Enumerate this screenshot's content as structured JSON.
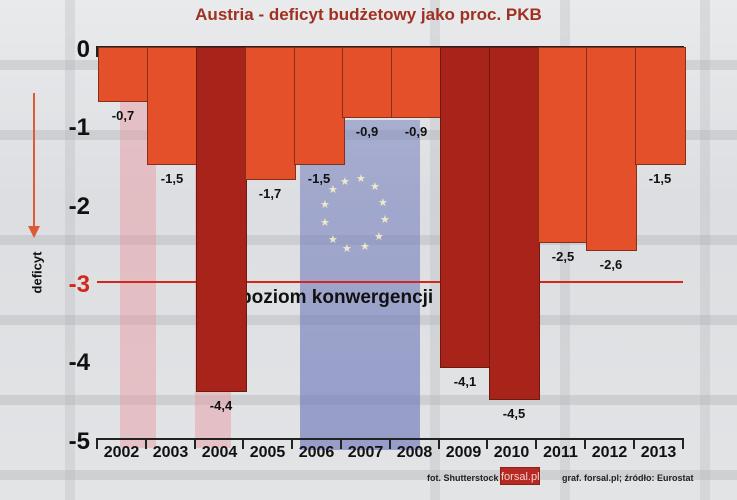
{
  "title": "Austria - deficyt budżetowy jako proc. PKB",
  "y_axis": {
    "label": "deficyt",
    "ticks": [
      {
        "value": 0,
        "label": "0"
      },
      {
        "value": -1,
        "label": "-1"
      },
      {
        "value": -2,
        "label": "-2"
      },
      {
        "value": -3,
        "label": "-3"
      },
      {
        "value": -4,
        "label": "-4"
      },
      {
        "value": -5,
        "label": "-5"
      }
    ]
  },
  "convergence": {
    "value": -3,
    "label": "poziom konwergencji"
  },
  "credits": {
    "photo": "fot. Shutterstock",
    "logo": "forsal.pl",
    "source": "graf. forsal.pl;  źródło: Eurostat"
  },
  "colors": {
    "bar_normal": "#e3502a",
    "bar_exceed": "#a8231a",
    "convergence_line": "#d0281c",
    "title": "#a03020"
  },
  "chart_data": {
    "type": "bar",
    "title": "Austria - deficyt budżetowy jako proc. PKB",
    "xlabel": "",
    "ylabel": "deficyt",
    "ylim": [
      -5,
      0
    ],
    "grid": false,
    "legend": null,
    "categories": [
      "2002",
      "2003",
      "2004",
      "2005",
      "2006",
      "2007",
      "2008",
      "2009",
      "2010",
      "2011",
      "2012",
      "2013"
    ],
    "values": [
      -0.7,
      -1.5,
      -4.4,
      -1.7,
      -1.5,
      -0.9,
      -0.9,
      -4.1,
      -4.5,
      -2.5,
      -2.6,
      -1.5
    ],
    "value_labels": [
      "-0,7",
      "-1,5",
      "-4,4",
      "-1,7",
      "-1,5",
      "-0,9",
      "-0,9",
      "-4,1",
      "-4,5",
      "-2,5",
      "-2,6",
      "-1,5"
    ],
    "annotations": [
      {
        "type": "hline",
        "y": -3,
        "label": "poziom konwergencji"
      }
    ],
    "highlight_below": -3
  }
}
